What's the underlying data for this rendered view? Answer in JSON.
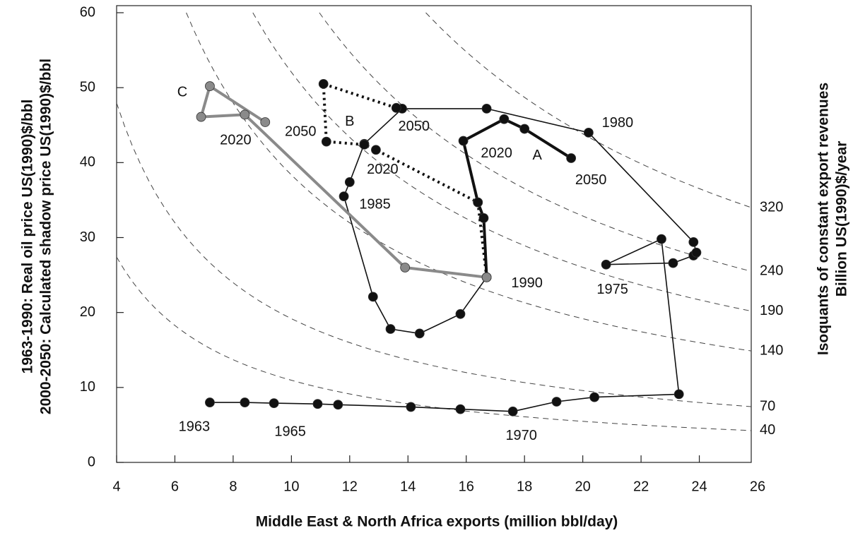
{
  "chart_data": {
    "type": "line",
    "xlabel": "Middle East  & North Africa exports (million bbl/day)",
    "ylabel": [
      "1963-1990: Real oil price US(1990)$/bbl",
      "2000-2050: Calculated shadow price US(1990)$/bbl"
    ],
    "y2label": [
      "Isoquants of constant export revenues",
      "Billion US(1990)$/year"
    ],
    "xlim": [
      4,
      26
    ],
    "ylim": [
      0,
      60
    ],
    "xticks": [
      4,
      6,
      8,
      10,
      12,
      14,
      16,
      18,
      20,
      22,
      24,
      26
    ],
    "yticks": [
      0,
      10,
      20,
      30,
      40,
      50,
      60
    ],
    "isoquants": {
      "values": [
        40,
        70,
        140,
        190,
        240,
        320
      ],
      "color": "#444"
    },
    "series": [
      {
        "color": "#111",
        "style": "solid",
        "linewidth": 1.6,
        "x": [
          7.2,
          8.4,
          9.4,
          10.9,
          11.6,
          14.1,
          15.8,
          17.6,
          19.1,
          20.4,
          23.3,
          22.7,
          20.8,
          23.1,
          23.8,
          23.9,
          23.8,
          20.2,
          16.7,
          13.8,
          12.5,
          12.0,
          11.8,
          12.8,
          13.4,
          14.4,
          15.8,
          16.7
        ],
        "values": [
          8.0,
          8.0,
          7.9,
          7.8,
          7.7,
          7.4,
          7.1,
          6.8,
          8.1,
          8.7,
          9.1,
          29.8,
          26.4,
          26.6,
          27.6,
          28.0,
          29.4,
          44.0,
          47.2,
          47.2,
          42.5,
          37.4,
          35.5,
          22.1,
          17.8,
          17.2,
          19.8,
          24.7
        ],
        "point_labels": [
          "1963",
          null,
          "1965",
          null,
          null,
          null,
          null,
          "1970",
          null,
          null,
          null,
          null,
          "1975",
          null,
          null,
          null,
          null,
          "1980",
          null,
          null,
          null,
          null,
          "1985",
          null,
          null,
          null,
          null,
          "1990"
        ]
      },
      {
        "name": "A",
        "color": "#111",
        "style": "solid",
        "linewidth": 4,
        "x": [
          16.7,
          16.6,
          16.4,
          15.9,
          17.3,
          18.0,
          19.6
        ],
        "values": [
          24.7,
          32.6,
          34.7,
          42.9,
          45.8,
          44.5,
          40.6
        ],
        "point_labels": [
          null,
          null,
          null,
          "2020",
          null,
          null,
          "2050"
        ]
      },
      {
        "name": "B",
        "color": "#111",
        "style": "dotted",
        "linewidth": 4,
        "x": [
          16.7,
          16.4,
          12.9,
          12.5,
          11.2,
          11.1,
          13.6
        ],
        "values": [
          24.7,
          34.7,
          41.7,
          42.4,
          42.8,
          50.5,
          47.3
        ],
        "point_labels": [
          null,
          null,
          null,
          "2020",
          null,
          null,
          "2050"
        ]
      },
      {
        "name": "C",
        "color": "#8a8a8a",
        "style": "solid",
        "linewidth": 4,
        "x": [
          16.7,
          13.9,
          8.4,
          6.9,
          7.2,
          9.1
        ],
        "values": [
          24.7,
          26.0,
          46.4,
          46.1,
          50.2,
          45.4
        ],
        "point_labels": [
          null,
          null,
          "2020",
          null,
          null,
          "2050"
        ]
      }
    ]
  }
}
